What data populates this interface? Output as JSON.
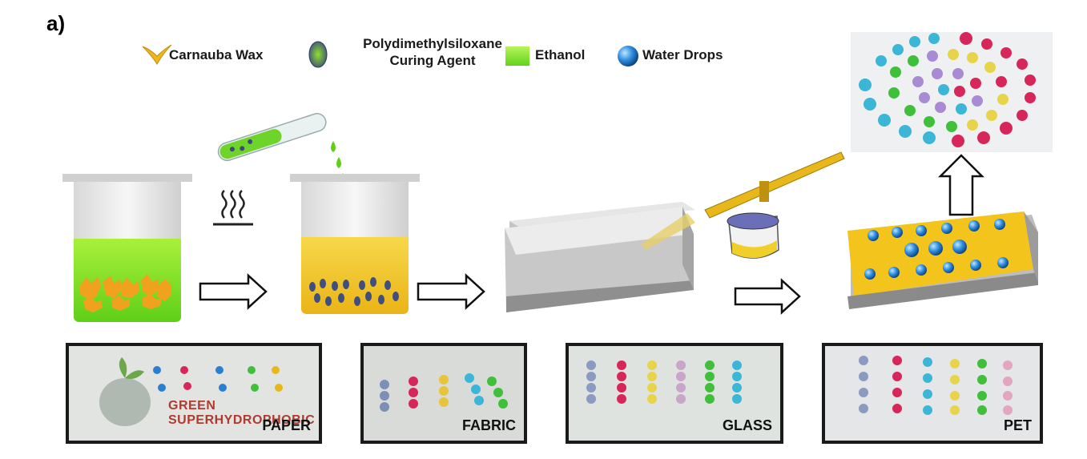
{
  "panel_label": "a)",
  "legend": {
    "wax": "Carnauba Wax",
    "pdms_line1": "Polydimethylsiloxane",
    "pdms_line2": "Curing Agent",
    "ethanol": "Ethanol",
    "water": "Water Drops"
  },
  "photos": {
    "paper": "PAPER",
    "paper_caption": "GREEN SUPERHYDROPHOBIC",
    "fabric": "FABRIC",
    "glass": "GLASS",
    "pet": "PET"
  },
  "colors": {
    "wax": "#f0b51e",
    "ethanol": "#8ee020",
    "drop": "#2a7fd0",
    "slab": "#c9c9c9",
    "coating": "#f3c51c",
    "pink": "#d7265a",
    "yellow": "#e8d44a",
    "green": "#3fbf3a",
    "cyan": "#3cb6d6",
    "purple": "#a98bd3"
  }
}
